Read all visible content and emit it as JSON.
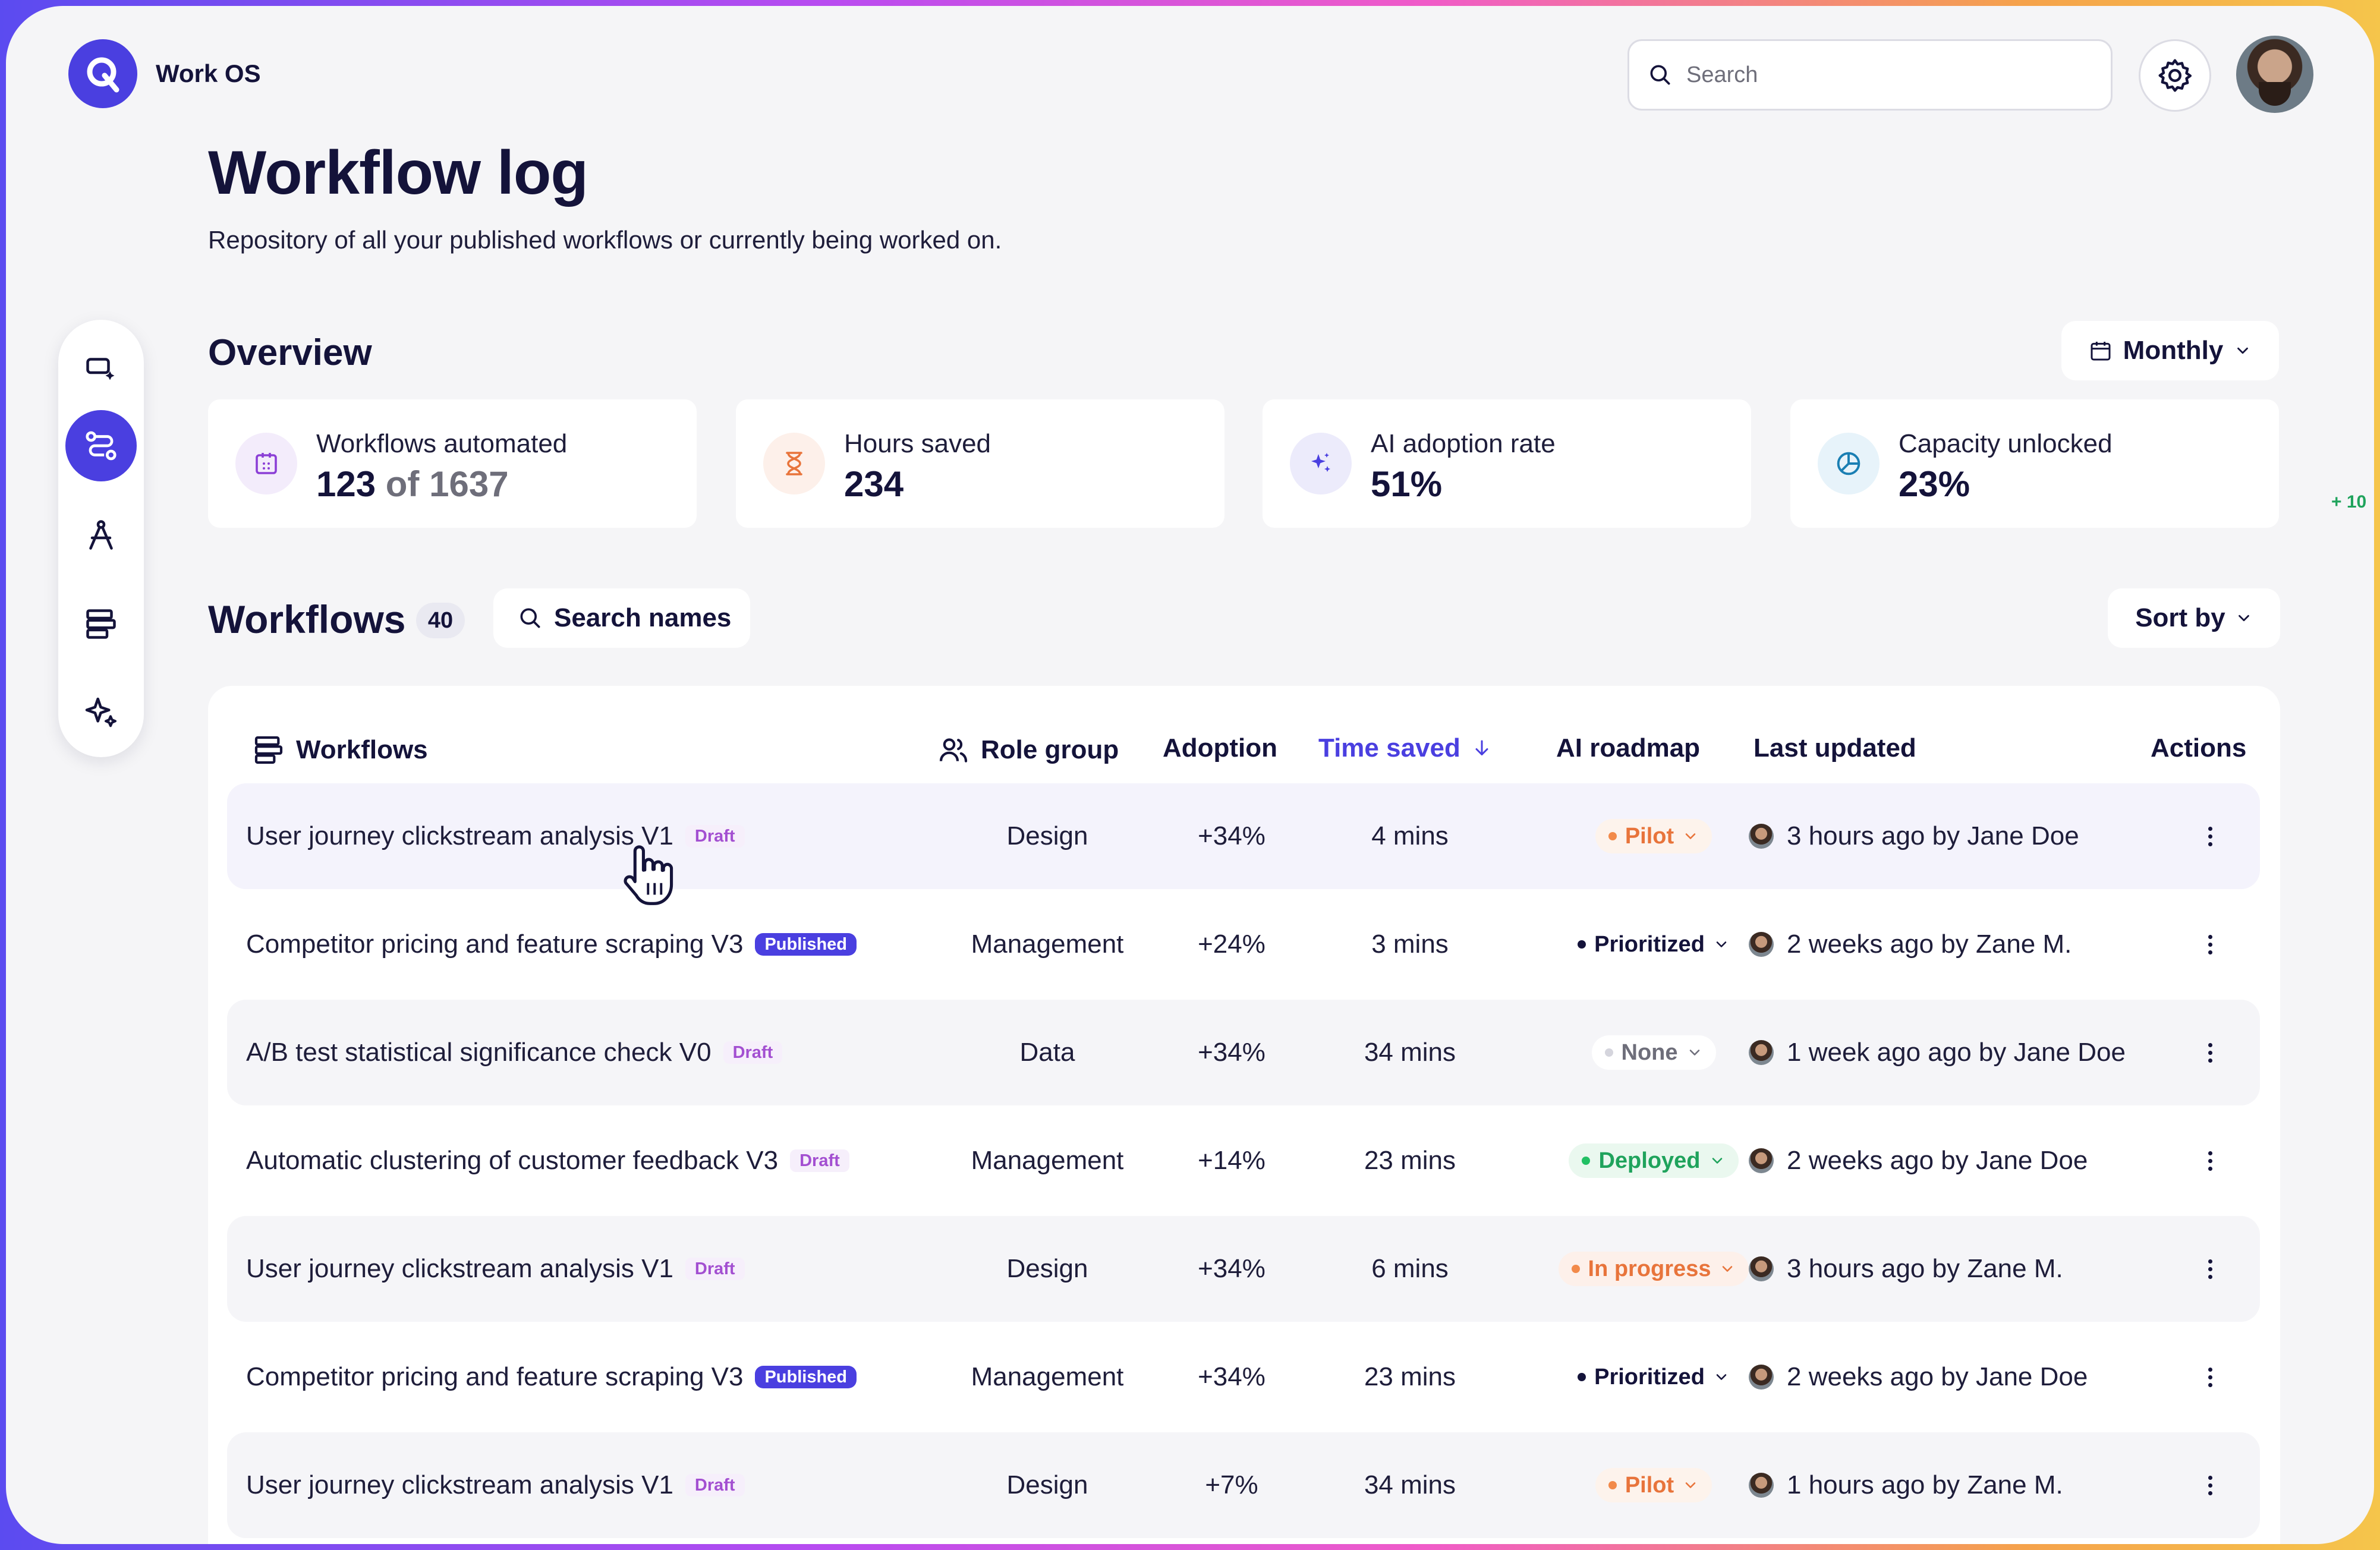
{
  "brand": {
    "name": "Work OS"
  },
  "topbar": {
    "search_placeholder": "Search"
  },
  "header": {
    "title": "Workflow log",
    "subtitle": "Repository of all your published workflows or currently being worked on."
  },
  "sidebar": {
    "items": [
      {
        "name": "sidebar-item-cursor-sparkle",
        "icon": "cursor-sparkle-icon",
        "active": false
      },
      {
        "name": "sidebar-item-workflows",
        "icon": "workflow-routes-icon",
        "active": true
      },
      {
        "name": "sidebar-item-compass",
        "icon": "compass-icon",
        "active": false
      },
      {
        "name": "sidebar-item-layers",
        "icon": "layers-icon",
        "active": false
      },
      {
        "name": "sidebar-item-ai",
        "icon": "sparkles-icon",
        "active": false
      }
    ]
  },
  "overview": {
    "title": "Overview",
    "period_label": "Monthly",
    "edge_note": "+ 10",
    "cards": [
      {
        "label": "Workflows automated",
        "value": "123",
        "value_suffix": " of 1637",
        "icon": "calendar-icon",
        "color": "#8b3fd6",
        "bg": "#f3ecfb"
      },
      {
        "label": "Hours saved",
        "value": "234",
        "value_suffix": "",
        "icon": "hourglass-icon",
        "color": "#e8743b",
        "bg": "#fdf0ea"
      },
      {
        "label": "AI adoption rate",
        "value": "51%",
        "value_suffix": "",
        "icon": "sparkles-icon",
        "color": "#4a3fe0",
        "bg": "#ecebfb"
      },
      {
        "label": "Capacity unlocked",
        "value": "23%",
        "value_suffix": "",
        "icon": "pie-chart-icon",
        "color": "#1a7fb3",
        "bg": "#e7f3fa"
      }
    ]
  },
  "workflows": {
    "title": "Workflows",
    "count": "40",
    "search_label": "Search names",
    "sort_label": "Sort by",
    "columns": {
      "workflows": "Workflows",
      "role_group": "Role group",
      "adoption": "Adoption",
      "time_saved": "Time saved",
      "ai_roadmap": "AI roadmap",
      "last_updated": "Last updated",
      "actions": "Actions"
    },
    "rows": [
      {
        "name": "User journey clickstream analysis V1",
        "badge": "Draft",
        "badge_type": "draft",
        "role": "Design",
        "adoption": "+34%",
        "time": "4 mins",
        "roadmap": "Pilot",
        "roadmap_type": "pilot",
        "updated": "3 hours ago by Jane Doe",
        "style": "hover"
      },
      {
        "name": "Competitor pricing and feature scraping V3",
        "badge": "Published",
        "badge_type": "published",
        "role": "Management",
        "adoption": "+24%",
        "time": "3 mins",
        "roadmap": "Prioritized",
        "roadmap_type": "prioritized",
        "updated": "2 weeks ago by Zane M.",
        "style": "plain"
      },
      {
        "name": "A/B test statistical significance check V0",
        "badge": "Draft",
        "badge_type": "draft",
        "role": "Data",
        "adoption": "+34%",
        "time": "34 mins",
        "roadmap": "None",
        "roadmap_type": "none",
        "updated": "1 week ago ago by Jane Doe",
        "style": "shaded"
      },
      {
        "name": "Automatic clustering of customer feedback V3",
        "badge": "Draft",
        "badge_type": "draft",
        "role": "Management",
        "adoption": "+14%",
        "time": "23 mins",
        "roadmap": "Deployed",
        "roadmap_type": "deployed",
        "updated": "2 weeks ago by Jane Doe",
        "style": "plain"
      },
      {
        "name": "User journey clickstream analysis V1",
        "badge": "Draft",
        "badge_type": "draft",
        "role": "Design",
        "adoption": "+34%",
        "time": "6 mins",
        "roadmap": "In progress",
        "roadmap_type": "progress",
        "updated": "3 hours ago by Zane M.",
        "style": "shaded"
      },
      {
        "name": "Competitor pricing and feature scraping V3",
        "badge": "Published",
        "badge_type": "published",
        "role": "Management",
        "adoption": "+34%",
        "time": "23 mins",
        "roadmap": "Prioritized",
        "roadmap_type": "prioritized",
        "updated": "2 weeks ago by Jane Doe",
        "style": "plain"
      },
      {
        "name": "User journey clickstream analysis V1",
        "badge": "Draft",
        "badge_type": "draft",
        "role": "Design",
        "adoption": "+7%",
        "time": "34 mins",
        "roadmap": "Pilot",
        "roadmap_type": "pilot",
        "updated": "1 hours ago by Zane M.",
        "style": "shaded"
      }
    ]
  },
  "colors": {
    "accent": "#4a3fe0",
    "text": "#14133a",
    "background": "#f5f5f7"
  }
}
